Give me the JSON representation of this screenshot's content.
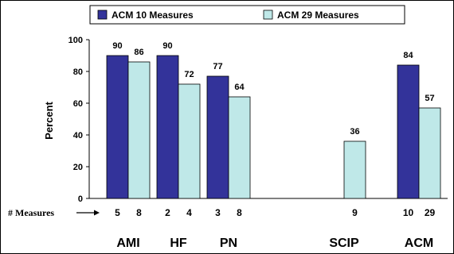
{
  "chart_data": {
    "type": "bar",
    "categories": [
      "AMI",
      "HF",
      "PN",
      "SCIP",
      "ACM"
    ],
    "series": [
      {
        "name": "ACM 10 Measures",
        "color": "#33339A",
        "values": [
          90,
          90,
          77,
          null,
          84
        ]
      },
      {
        "name": "ACM 29 Measures",
        "color": "#BFE8E8",
        "values": [
          86,
          72,
          64,
          36,
          57
        ]
      }
    ],
    "measures_label": "# Measures",
    "measures_counts": [
      [
        "5",
        "8"
      ],
      [
        "2",
        "4"
      ],
      [
        "3",
        "8"
      ],
      [
        "",
        "9"
      ],
      [
        "10",
        "29"
      ]
    ],
    "ylabel": "Percent",
    "ylim": [
      0,
      100
    ],
    "yticks": [
      0,
      20,
      40,
      60,
      80,
      100
    ],
    "legend_position": "top",
    "grid": false
  }
}
